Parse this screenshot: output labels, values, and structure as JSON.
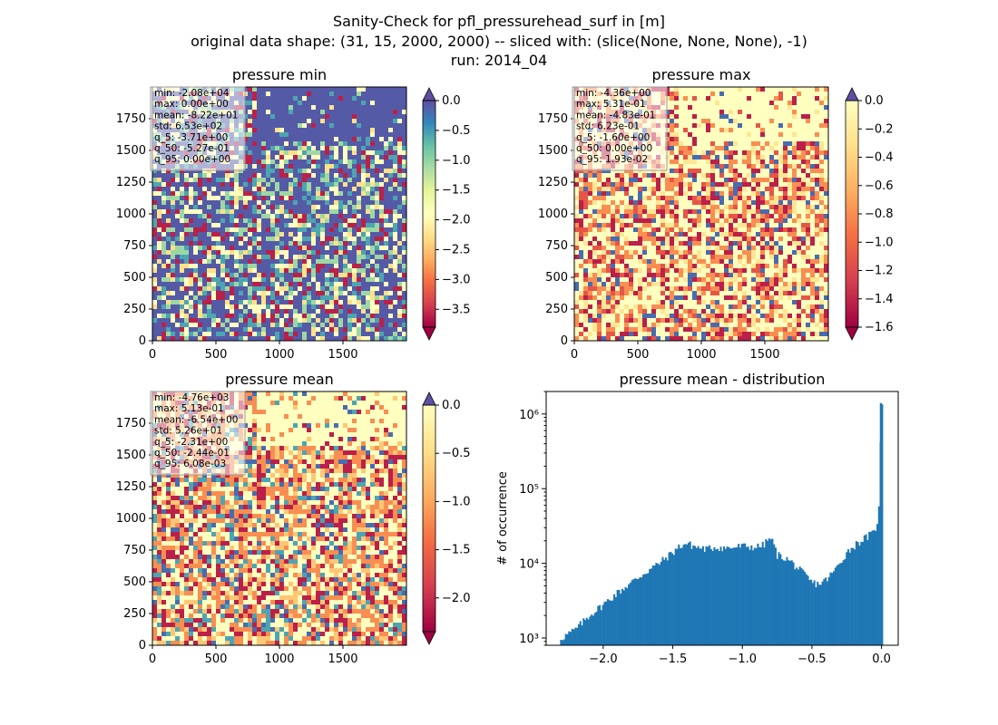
{
  "figure": {
    "title_lines": [
      "Sanity-Check for pfl_pressurehead_surf in [m]",
      "original data shape: (31, 15, 2000, 2000) -- sliced with: (slice(None, None, None), -1)",
      "run: 2014_04"
    ]
  },
  "chart_data": [
    {
      "type": "heatmap",
      "title": "pressure min",
      "colormap": "Spectral",
      "extend": "both",
      "xlim": [
        0,
        2000
      ],
      "ylim": [
        0,
        2000
      ],
      "x_ticks": [
        "0",
        "500",
        "1000",
        "1500"
      ],
      "y_ticks": [
        "0",
        "250",
        "500",
        "750",
        "1000",
        "1250",
        "1500",
        "1750"
      ],
      "colorbar": {
        "vmin": -3.8,
        "vmax": 0.0,
        "ticks": [
          "0.0",
          "−0.5",
          "−1.0",
          "−1.5",
          "−2.0",
          "−2.5",
          "−3.0",
          "−3.5"
        ]
      },
      "stats": [
        "min: -2.08e+04",
        "max: 0.00e+00",
        "mean: -8.22e+01",
        "std: 6.53e+02",
        "q_5: -3.71e+00",
        "q_50: -5.27e-01",
        "q_95: 0.00e+00"
      ]
    },
    {
      "type": "heatmap",
      "title": "pressure max",
      "colormap": "Spectral",
      "extend": "both",
      "xlim": [
        0,
        2000
      ],
      "ylim": [
        0,
        2000
      ],
      "x_ticks": [
        "0",
        "500",
        "1000",
        "1500"
      ],
      "y_ticks": [
        "0",
        "250",
        "500",
        "750",
        "1000",
        "1250",
        "1500",
        "1750"
      ],
      "colorbar": {
        "vmin": -1.6,
        "vmax": 0.0,
        "ticks": [
          "0.0",
          "−0.2",
          "−0.4",
          "−0.6",
          "−0.8",
          "−1.0",
          "−1.2",
          "−1.4",
          "−1.6"
        ]
      },
      "stats": [
        "min: -4.36e+00",
        "max: 5.31e-01",
        "mean: -4.83e-01",
        "std: 6.23e-01",
        "q_5: -1.60e+00",
        "q_50: 0.00e+00",
        "q_95: 1.93e-02"
      ]
    },
    {
      "type": "heatmap",
      "title": "pressure mean",
      "colormap": "Spectral",
      "extend": "both",
      "xlim": [
        0,
        2000
      ],
      "ylim": [
        0,
        2000
      ],
      "x_ticks": [
        "0",
        "500",
        "1000",
        "1500"
      ],
      "y_ticks": [
        "0",
        "250",
        "500",
        "750",
        "1000",
        "1250",
        "1500",
        "1750"
      ],
      "colorbar": {
        "vmin": -2.35,
        "vmax": 0.0,
        "ticks": [
          "0.0",
          "−0.5",
          "−1.0",
          "−1.5",
          "−2.0"
        ]
      },
      "stats": [
        "min: -4.76e+03",
        "max: 5.13e-01",
        "mean: -6.54e+00",
        "std: 5.26e+01",
        "q_5: -2.31e+00",
        "q_50: -2.44e-01",
        "q_95: 6.08e-03"
      ]
    },
    {
      "type": "bar",
      "subtype": "histogram",
      "title": "pressure mean - distribution",
      "ylabel": "# of occurrence",
      "yscale": "log",
      "ylim": [
        800,
        2000000
      ],
      "xlim": [
        -2.41,
        0.12
      ],
      "x_ticks": [
        "−2.0",
        "−1.5",
        "−1.0",
        "−0.5",
        "0.0"
      ],
      "y_ticks": [
        "10³",
        "10⁴",
        "10⁵",
        "10⁶"
      ],
      "color": "#1f77b4",
      "bins": {
        "start": -2.31,
        "width": 0.0116
      },
      "x": [
        -2.3,
        -2.2,
        -2.1,
        -2.0,
        -1.9,
        -1.8,
        -1.7,
        -1.6,
        -1.5,
        -1.45,
        -1.4,
        -1.35,
        -1.3,
        -1.25,
        -1.2,
        -1.1,
        -1.0,
        -0.9,
        -0.85,
        -0.8,
        -0.78,
        -0.75,
        -0.7,
        -0.65,
        -0.6,
        -0.55,
        -0.5,
        -0.45,
        -0.4,
        -0.35,
        -0.3,
        -0.25,
        -0.2,
        -0.15,
        -0.1,
        -0.05,
        -0.02,
        0.0
      ],
      "values": [
        1000,
        1300,
        2000,
        2800,
        4000,
        5500,
        7500,
        10000,
        14000,
        17000,
        18500,
        17000,
        16000,
        15500,
        16500,
        16000,
        17000,
        16500,
        17500,
        22000,
        19000,
        13000,
        12000,
        10500,
        8500,
        7000,
        5500,
        5300,
        6000,
        7500,
        10000,
        14000,
        17000,
        20000,
        23000,
        26000,
        45000,
        1400000
      ]
    }
  ]
}
